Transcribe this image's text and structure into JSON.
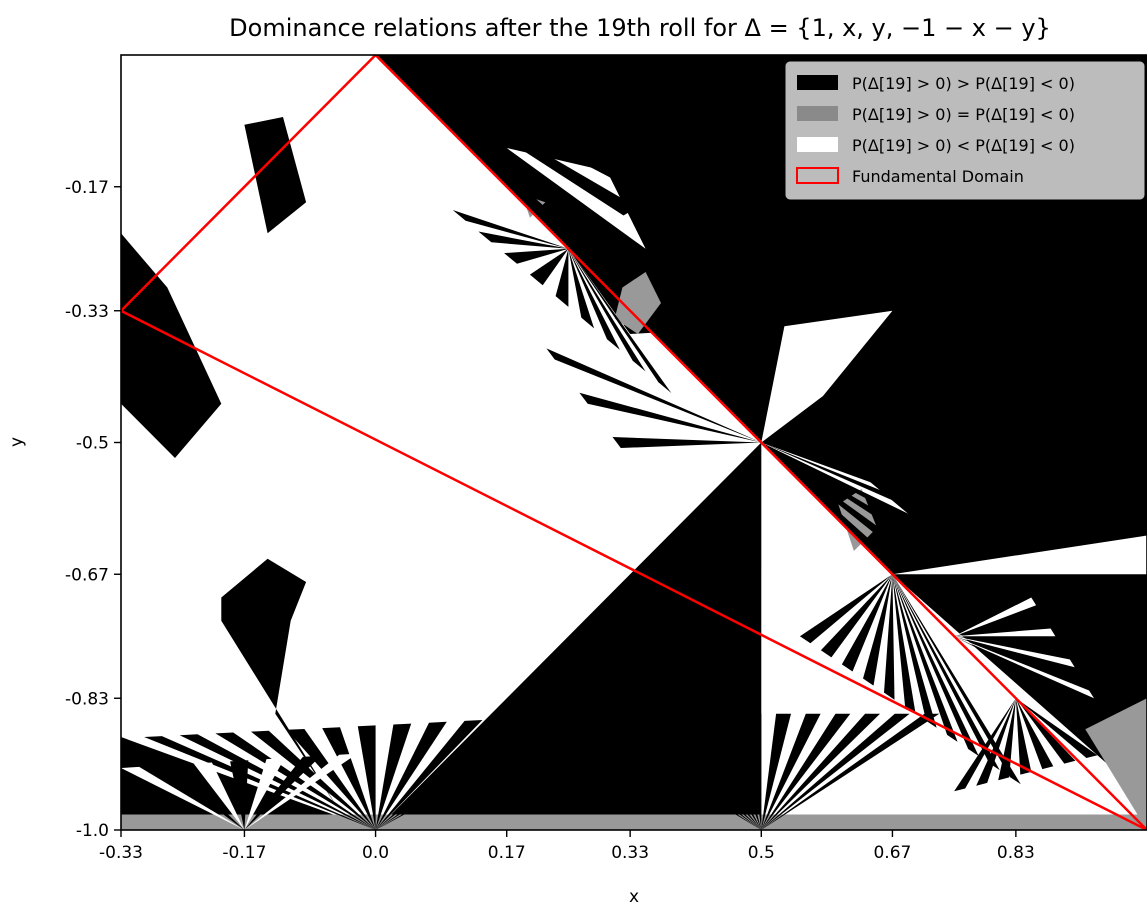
{
  "chart_data": {
    "type": "heatmap",
    "title": "Dominance relations after the 19th roll for Δ = {1, x, y, −1 − x − y}",
    "xlabel": "x",
    "ylabel": "y",
    "xlim": [
      -0.33,
      1.0
    ],
    "ylim": [
      -1.0,
      0.0
    ],
    "xticks": [
      -0.33,
      -0.17,
      0.0,
      0.17,
      0.33,
      0.5,
      0.67,
      0.83
    ],
    "xtick_labels": [
      "-0.33",
      "-0.17",
      "0.0",
      "0.17",
      "0.33",
      "0.5",
      "0.67",
      "0.83"
    ],
    "yticks": [
      -1.0,
      -0.83,
      -0.67,
      -0.5,
      -0.33,
      -0.17
    ],
    "ytick_labels": [
      "-1.0",
      "-0.83",
      "-0.67",
      "-0.5",
      "-0.33",
      "-0.17"
    ],
    "grid": false,
    "legend_position": "top-right",
    "legend": [
      {
        "label": "P(Δ[19] > 0) > P(Δ[19] < 0)",
        "color": "#000000",
        "kind": "patch"
      },
      {
        "label": "P(Δ[19] > 0) = P(Δ[19] < 0)",
        "color": "#8a8a8a",
        "kind": "patch"
      },
      {
        "label": "P(Δ[19] > 0) < P(Δ[19] < 0)",
        "color": "#ffffff",
        "kind": "patch"
      },
      {
        "label": "Fundamental Domain",
        "color": "#ff0000",
        "kind": "outline"
      }
    ],
    "fundamental_domain": [
      {
        "x": -0.33,
        "y": -0.33
      },
      {
        "x": 0.0,
        "y": 0.0
      },
      {
        "x": 0.5,
        "y": -0.5
      },
      {
        "x": 1.0,
        "y": -1.0
      },
      {
        "x": -0.33,
        "y": -0.33
      }
    ],
    "regions": [
      {
        "state": "black",
        "points": [
          [
            0.0,
            0.0
          ],
          [
            1.0,
            0.0
          ],
          [
            1.0,
            -0.5
          ],
          [
            0.5,
            -0.5
          ]
        ]
      },
      {
        "state": "black",
        "points": [
          [
            0.5,
            -0.5
          ],
          [
            1.0,
            -0.5
          ],
          [
            1.0,
            -0.96
          ],
          [
            0.67,
            -0.67
          ]
        ]
      },
      {
        "state": "black",
        "points": [
          [
            0.33,
            -0.67
          ],
          [
            0.5,
            -0.5
          ],
          [
            0.5,
            -1.0
          ],
          [
            0.0,
            -1.0
          ]
        ]
      },
      {
        "state": "black",
        "points": [
          [
            -0.33,
            -0.23
          ],
          [
            -0.27,
            -0.3
          ],
          [
            -0.2,
            -0.45
          ],
          [
            -0.26,
            -0.52
          ],
          [
            -0.33,
            -0.45
          ]
        ]
      },
      {
        "state": "black",
        "points": [
          [
            -0.17,
            -0.09
          ],
          [
            -0.12,
            -0.08
          ],
          [
            -0.09,
            -0.19
          ],
          [
            -0.14,
            -0.23
          ]
        ]
      },
      {
        "state": "black",
        "points": [
          [
            -0.2,
            -0.7
          ],
          [
            -0.14,
            -0.65
          ],
          [
            -0.09,
            -0.68
          ],
          [
            -0.11,
            -0.73
          ],
          [
            -0.13,
            -0.85
          ],
          [
            -0.05,
            -0.97
          ],
          [
            -0.2,
            -0.73
          ]
        ]
      },
      {
        "state": "black",
        "points": [
          [
            0.25,
            -0.25
          ],
          [
            0.45,
            -0.05
          ],
          [
            0.5,
            -0.35
          ],
          [
            0.33,
            -0.36
          ]
        ]
      },
      {
        "state": "black",
        "points": [
          [
            -0.33,
            -0.88
          ],
          [
            0.0,
            -1.0
          ],
          [
            -0.33,
            -1.0
          ]
        ]
      },
      {
        "state": "white",
        "points": [
          [
            0.5,
            -0.5
          ],
          [
            0.53,
            -0.35
          ],
          [
            0.67,
            -0.33
          ],
          [
            0.58,
            -0.44
          ]
        ]
      },
      {
        "state": "white",
        "points": [
          [
            0.67,
            -0.67
          ],
          [
            1.0,
            -0.62
          ],
          [
            1.0,
            -0.67
          ]
        ]
      },
      {
        "state": "white",
        "points": [
          [
            0.5,
            -0.5
          ],
          [
            0.64,
            -0.55
          ],
          [
            0.7,
            -0.6
          ]
        ]
      },
      {
        "state": "white",
        "points": [
          [
            0.75,
            -0.75
          ],
          [
            0.5,
            -1.0
          ],
          [
            0.63,
            -1.0
          ]
        ]
      },
      {
        "state": "white",
        "points": [
          [
            0.8,
            -0.8
          ],
          [
            0.72,
            -1.0
          ],
          [
            0.83,
            -1.0
          ]
        ]
      },
      {
        "state": "white",
        "points": [
          [
            0.67,
            -0.67
          ],
          [
            0.58,
            -0.9
          ],
          [
            0.62,
            -0.95
          ]
        ]
      },
      {
        "state": "white",
        "points": [
          [
            0.17,
            -0.12
          ],
          [
            0.3,
            -0.15
          ],
          [
            0.35,
            -0.25
          ]
        ]
      },
      {
        "state": "white",
        "points": [
          [
            0.33,
            -0.33
          ],
          [
            0.2,
            -0.4
          ],
          [
            0.25,
            -0.5
          ]
        ]
      },
      {
        "state": "gray",
        "points": [
          [
            0.32,
            -0.3
          ],
          [
            0.35,
            -0.28
          ],
          [
            0.37,
            -0.32
          ],
          [
            0.34,
            -0.36
          ],
          [
            0.31,
            -0.34
          ]
        ]
      },
      {
        "state": "gray",
        "points": [
          [
            0.6,
            -0.58
          ],
          [
            0.63,
            -0.56
          ],
          [
            0.65,
            -0.61
          ],
          [
            0.62,
            -0.64
          ]
        ]
      },
      {
        "state": "gray",
        "points": [
          [
            0.92,
            -0.87
          ],
          [
            1.0,
            -0.83
          ],
          [
            1.0,
            -1.0
          ]
        ]
      },
      {
        "state": "gray",
        "points": [
          [
            -0.33,
            -0.98
          ],
          [
            1.0,
            -0.98
          ],
          [
            1.0,
            -1.0
          ],
          [
            -0.33,
            -1.0
          ]
        ]
      },
      {
        "state": "gray",
        "points": [
          [
            0.19,
            -0.18
          ],
          [
            0.22,
            -0.19
          ],
          [
            0.2,
            -0.21
          ]
        ]
      }
    ],
    "fans": [
      {
        "cx": 0.0,
        "cy": 0.0,
        "from": [
          0.25,
          -0.25
        ],
        "to": [
          0.5,
          -0.1
        ],
        "rays": 14
      },
      {
        "cx": 0.25,
        "cy": -0.25,
        "from": [
          0.1,
          -0.2
        ],
        "to": [
          0.4,
          -0.45
        ],
        "rays": 18
      },
      {
        "cx": 0.5,
        "cy": -0.5,
        "from": [
          0.2,
          -0.35
        ],
        "to": [
          0.35,
          -0.55
        ],
        "rays": 14
      },
      {
        "cx": 0.5,
        "cy": -0.5,
        "from": [
          0.67,
          -0.67
        ],
        "to": [
          0.9,
          -0.58
        ],
        "rays": 16
      },
      {
        "cx": 0.67,
        "cy": -0.67,
        "from": [
          0.55,
          -0.75
        ],
        "to": [
          0.85,
          -0.95
        ],
        "rays": 22
      },
      {
        "cx": 0.75,
        "cy": -0.75,
        "from": [
          0.85,
          -0.7
        ],
        "to": [
          0.95,
          -0.86
        ],
        "rays": 16
      },
      {
        "cx": 0.0,
        "cy": -1.0,
        "from": [
          -0.3,
          -0.88
        ],
        "to": [
          0.3,
          -0.85
        ],
        "rays": 26
      },
      {
        "cx": 0.5,
        "cy": -1.0,
        "from": [
          0.25,
          -0.85
        ],
        "to": [
          0.75,
          -0.85
        ],
        "rays": 26
      },
      {
        "cx": -0.17,
        "cy": -1.0,
        "from": [
          -0.33,
          -0.92
        ],
        "to": [
          0.0,
          -0.9
        ],
        "rays": 14
      },
      {
        "cx": 0.83,
        "cy": -0.83,
        "from": [
          0.75,
          -0.95
        ],
        "to": [
          0.95,
          -0.9
        ],
        "rays": 14
      }
    ]
  }
}
